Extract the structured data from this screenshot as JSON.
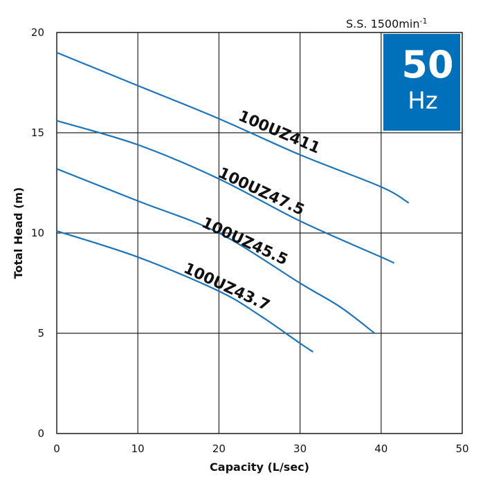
{
  "chart_data": {
    "type": "line",
    "title": "",
    "xlabel": "Capacity (L/sec)",
    "ylabel": "Total Head (m)",
    "xlim": [
      0,
      50
    ],
    "ylim": [
      0,
      20
    ],
    "xticks": [
      0,
      10,
      20,
      30,
      40,
      50
    ],
    "yticks": [
      0,
      5,
      10,
      15,
      20
    ],
    "grid": true,
    "line_color": "#1a75bc",
    "annotations": {
      "speed": "S.S. 1500min",
      "speed_exp": "-1",
      "freq_value": "50",
      "freq_unit": "Hz",
      "badge_color": "#0070bb"
    },
    "series": [
      {
        "name": "100UZ411",
        "x": [
          0,
          10,
          20,
          30,
          40,
          43.4
        ],
        "y": [
          19.0,
          17.35,
          15.7,
          13.9,
          12.3,
          11.5
        ]
      },
      {
        "name": "100UZ47.5",
        "x": [
          0,
          10,
          20,
          30,
          40,
          41.6
        ],
        "y": [
          15.6,
          14.4,
          12.7,
          10.6,
          8.8,
          8.5
        ]
      },
      {
        "name": "100UZ45.5",
        "x": [
          0,
          10,
          20,
          30,
          35,
          39.2
        ],
        "y": [
          13.2,
          11.6,
          10.0,
          7.5,
          6.3,
          5.0
        ]
      },
      {
        "name": "100UZ43.7",
        "x": [
          0,
          10,
          20,
          25,
          30,
          31.6
        ],
        "y": [
          10.1,
          8.8,
          7.1,
          5.9,
          4.5,
          4.07
        ]
      }
    ]
  }
}
